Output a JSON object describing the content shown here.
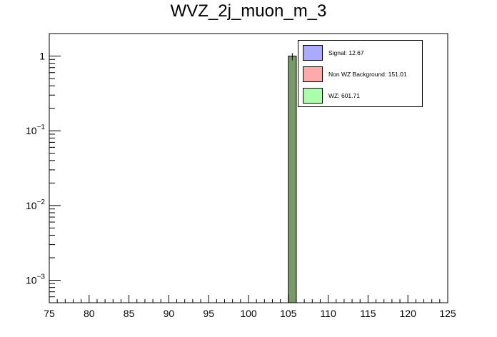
{
  "chart_data": {
    "type": "bar",
    "title": "WVZ_2j_muon_m_3",
    "xlabel": "",
    "ylabel": "",
    "xlim": [
      75,
      125
    ],
    "ylim": [
      0.0005,
      2
    ],
    "yscale": "log",
    "grid": false,
    "legend_position": "top-right",
    "x_ticks": [
      "75",
      "80",
      "85",
      "90",
      "95",
      "100",
      "105",
      "110",
      "115",
      "120",
      "125"
    ],
    "y_ticks": [
      {
        "base": "1",
        "exp": ""
      },
      {
        "base": "10",
        "exp": "−1"
      },
      {
        "base": "10",
        "exp": "−2"
      },
      {
        "base": "10",
        "exp": "−3"
      }
    ],
    "bin_width": 1,
    "series": [
      {
        "name": "Signal: 12.67",
        "color": "#aaaaff",
        "values": [
          [
            105,
            0
          ]
        ]
      },
      {
        "name": "Non WZ Background: 151.01",
        "color": "#ffaaaa",
        "values": [
          [
            105,
            0
          ]
        ]
      },
      {
        "name": "WZ: 601.71",
        "color": "#aaffaa",
        "values": [
          [
            105,
            1.0
          ]
        ]
      }
    ],
    "bar_color": "#7a9a6a"
  }
}
